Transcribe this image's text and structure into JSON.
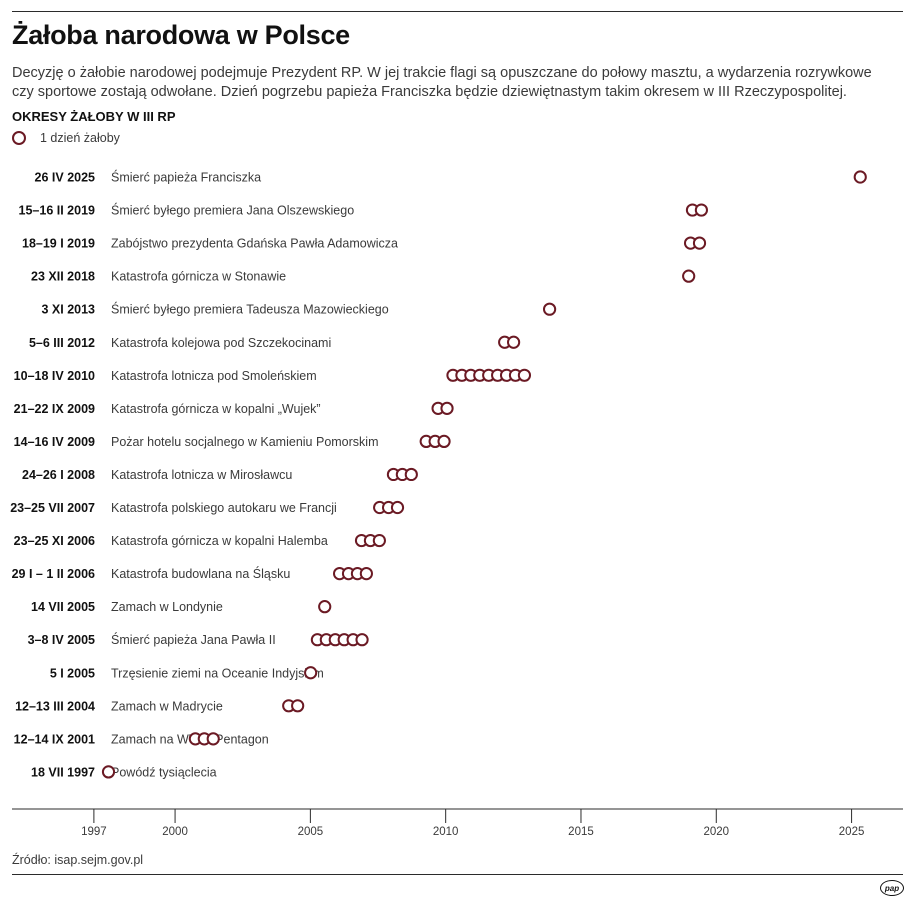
{
  "header": {
    "title": "Żałoba narodowa w Polsce",
    "subtitle": "Decyzję o żałobie narodowej podejmuje Prezydent RP. W jej trakcie flagi są opuszczane do połowy masztu, a wydarzenia rozrywkowe czy sportowe zostają odwołane. Dzień pogrzebu papieża Franciszka będzie dziewiętnastym takim okresem w III Rzeczypospolitej.",
    "section": "OKRESY ŻAŁOBY W III RP",
    "legend": "1 dzień żałoby"
  },
  "footer": {
    "source": "Źródło: isap.sejm.gov.pl",
    "logo_text": "pap"
  },
  "colors": {
    "marker": "#6b1a24",
    "text": "#3a3a3a",
    "label_bold": "#111111",
    "axis": "#2b2b2b"
  },
  "chart_data": {
    "type": "scatter",
    "xlim": [
      1993.9,
      2026.9
    ],
    "x_ticks": [
      1997,
      2000,
      2005,
      2010,
      2015,
      2020,
      2025
    ],
    "rows": [
      {
        "date_label": "26 IV 2025",
        "event": "Śmierć papieża Franciszka",
        "days": [
          2025.32
        ]
      },
      {
        "date_label": "15–16 II 2019",
        "event": "Śmierć byłego premiera Jana Olszewskiego",
        "days": [
          2019.12,
          2019.45
        ]
      },
      {
        "date_label": "18–19 I 2019",
        "event": "Zabójstwo prezydenta Gdańska Pawła Adamowicza",
        "days": [
          2019.05,
          2019.38
        ]
      },
      {
        "date_label": "23 XII 2018",
        "event": "Katastrofa górnicza w Stonawie",
        "days": [
          2018.98
        ]
      },
      {
        "date_label": "3 XI 2013",
        "event": "Śmierć byłego premiera Tadeusza Mazowieckiego",
        "days": [
          2013.84
        ]
      },
      {
        "date_label": "5–6 III 2012",
        "event": "Katastrofa kolejowa pod Szczekocinami",
        "days": [
          2012.18,
          2012.51
        ]
      },
      {
        "date_label": "10–18 IV 2010",
        "event": "Katastrofa lotnicza pod Smoleńskiem",
        "days": [
          2010.27,
          2010.6,
          2010.93,
          2011.26,
          2011.59,
          2011.92,
          2012.25,
          2012.58,
          2012.91
        ]
      },
      {
        "date_label": "21–22 IX 2009",
        "event": "Katastrofa górnicza w kopalni „Wujek”",
        "days": [
          2009.72,
          2010.05
        ]
      },
      {
        "date_label": "14–16 IV 2009",
        "event": "Pożar hotelu socjalnego w Kamieniu Pomorskim",
        "days": [
          2009.28,
          2009.61,
          2009.94
        ]
      },
      {
        "date_label": "24–26 I 2008",
        "event": "Katastrofa lotnicza w Mirosławcu",
        "days": [
          2008.07,
          2008.4,
          2008.73
        ]
      },
      {
        "date_label": "23–25 VII 2007",
        "event": "Katastrofa polskiego autokaru we Francji",
        "days": [
          2007.56,
          2007.89,
          2008.22
        ]
      },
      {
        "date_label": "23–25 XI 2006",
        "event": "Katastrofa górnicza w kopalni Halemba",
        "days": [
          2006.89,
          2007.22,
          2007.55
        ]
      },
      {
        "date_label": "29 I – 1 II 2006",
        "event": "Katastrofa budowlana na Śląsku",
        "days": [
          2006.08,
          2006.41,
          2006.74,
          2007.07
        ]
      },
      {
        "date_label": "14 VII 2005",
        "event": "Zamach w Londynie",
        "days": [
          2005.53
        ]
      },
      {
        "date_label": "3–8 IV 2005",
        "event": "Śmierć papieża Jana Pawła II",
        "days": [
          2005.26,
          2005.59,
          2005.92,
          2006.25,
          2006.58,
          2006.91
        ]
      },
      {
        "date_label": "5 I 2005",
        "event": "Trzęsienie ziemi na Oceanie Indyjskim",
        "days": [
          2005.01
        ]
      },
      {
        "date_label": "12–13 III 2004",
        "event": "Zamach w Madrycie",
        "days": [
          2004.2,
          2004.53
        ]
      },
      {
        "date_label": "12–14 IX 2001",
        "event": "Zamach na WTC i Pentagon",
        "days": [
          2000.75,
          2001.08,
          2001.41
        ]
      },
      {
        "date_label": "18 VII 1997",
        "event": "Powódź tysiąclecia",
        "days": [
          1997.54
        ]
      }
    ]
  }
}
